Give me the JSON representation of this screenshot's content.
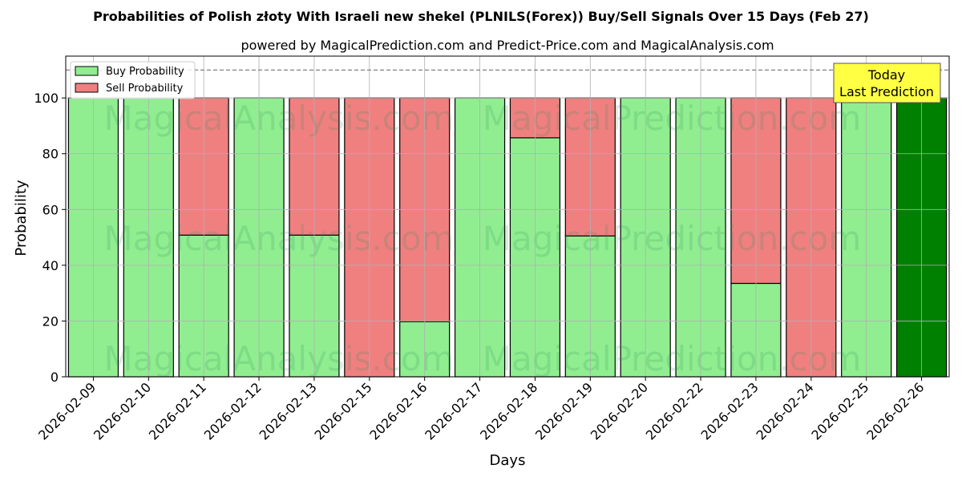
{
  "chart_data": {
    "type": "bar",
    "stacked": true,
    "title": "Probabilities of Polish złoty With Israeli new shekel (PLNILS(Forex)) Buy/Sell Signals Over 15 Days (Feb 27)",
    "subtitle": "powered by MagicalPrediction.com and Predict-Price.com and MagicalAnalysis.com",
    "xlabel": "Days",
    "ylabel": "Probability",
    "ylim": [
      0,
      115
    ],
    "yticks": [
      0,
      20,
      40,
      60,
      80,
      100
    ],
    "reference_line": 110,
    "grid": true,
    "legend_position": "top-left",
    "categories": [
      "2026-02-09",
      "2026-02-10",
      "2026-02-11",
      "2026-02-12",
      "2026-02-13",
      "2026-02-15",
      "2026-02-16",
      "2026-02-17",
      "2026-02-18",
      "2026-02-19",
      "2026-02-20",
      "2026-02-22",
      "2026-02-23",
      "2026-02-24",
      "2026-02-25",
      "2026-02-26"
    ],
    "series": [
      {
        "name": "Buy Probability",
        "color": "#90ee90",
        "values": [
          100,
          100,
          50.8,
          100,
          50.8,
          0,
          19.8,
          100,
          85.7,
          50.5,
          100,
          100,
          33.5,
          0,
          100,
          100
        ]
      },
      {
        "name": "Sell Probability",
        "color": "#f08080",
        "values": [
          0,
          0,
          49.2,
          0,
          49.2,
          100,
          80.2,
          0,
          14.3,
          49.5,
          0,
          0,
          66.5,
          100,
          0,
          0
        ]
      }
    ],
    "highlight": {
      "index": 15,
      "color": "#008000"
    },
    "annotation": {
      "lines": [
        "Today",
        "Last Prediction"
      ],
      "bg": "#ffff44"
    },
    "watermarks": [
      "MagicalAnalysis.com",
      "MagicalPrediction.com"
    ]
  }
}
